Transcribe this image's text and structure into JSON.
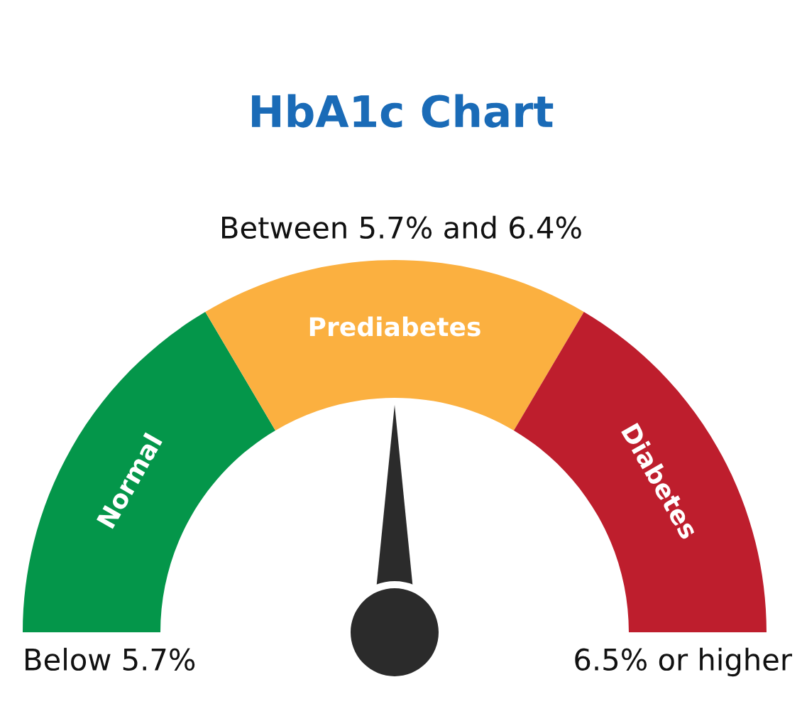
{
  "chart_data": {
    "type": "donut",
    "title": "HbA1c Chart",
    "categories": [
      "Normal",
      "Prediabetes",
      "Diabetes"
    ],
    "values": [
      33,
      34,
      33
    ],
    "colors": [
      "#04964a",
      "#fbb040",
      "#be1e2d"
    ],
    "needle": "Prediabetes",
    "annotations": [
      "Between 5.7% and 6.4%",
      "Below 5.7%",
      "6.5% or higher"
    ]
  }
}
